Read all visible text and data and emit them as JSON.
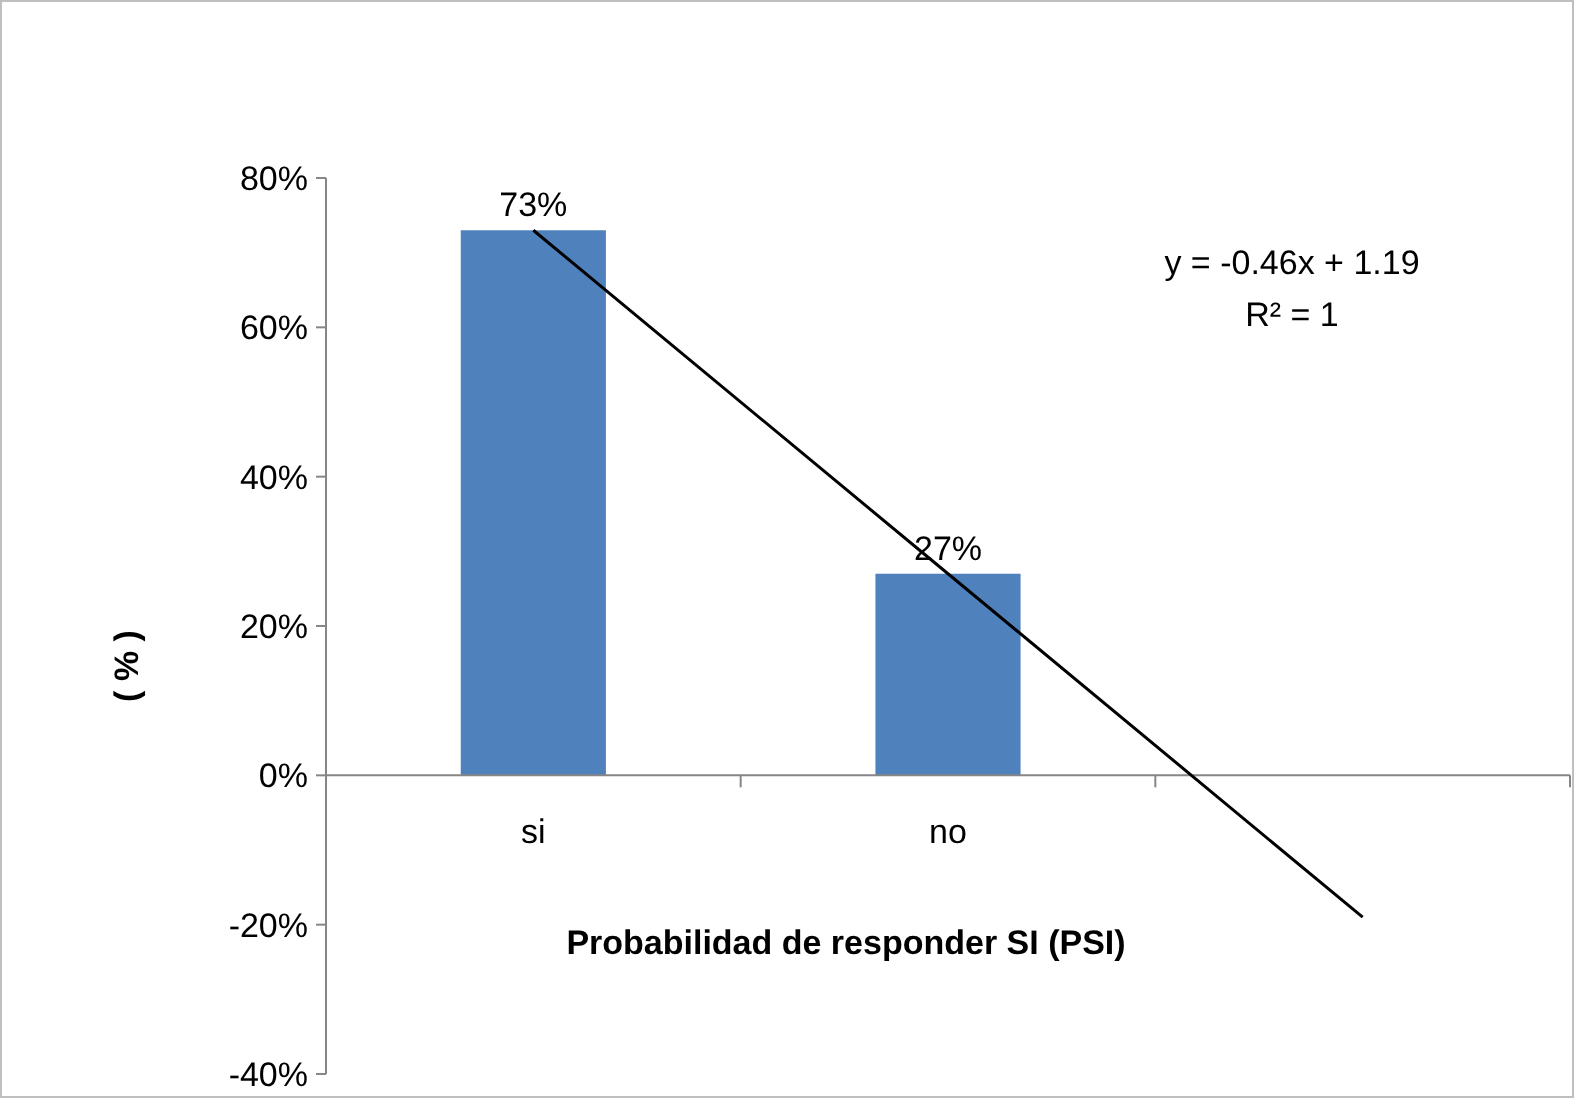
{
  "chart_data": {
    "type": "bar",
    "xlabel": "Probabilidad de responder SI (PSI)",
    "ylabel": "( % )",
    "categories": [
      "si",
      "no",
      null
    ],
    "series": [
      {
        "color": "#4f81bd",
        "values": [
          73,
          27,
          null
        ],
        "value_labels": [
          "73%",
          "27%",
          null
        ]
      },
      {
        "type": "line",
        "color": "#000000",
        "values": [
          73,
          27,
          -19
        ]
      }
    ],
    "ylim": [
      -40,
      80
    ],
    "yticks": [
      {
        "value": -40,
        "label": "-40%"
      },
      {
        "value": -20,
        "label": "-20%"
      },
      {
        "value": 0,
        "label": "0%"
      },
      {
        "value": 20,
        "label": "20%"
      },
      {
        "value": 40,
        "label": "40%"
      },
      {
        "value": 60,
        "label": "60%"
      },
      {
        "value": 80,
        "label": "80%"
      }
    ],
    "annotations": [
      "y = -0.46x + 1.19",
      "R² = 1"
    ],
    "grid": false
  }
}
